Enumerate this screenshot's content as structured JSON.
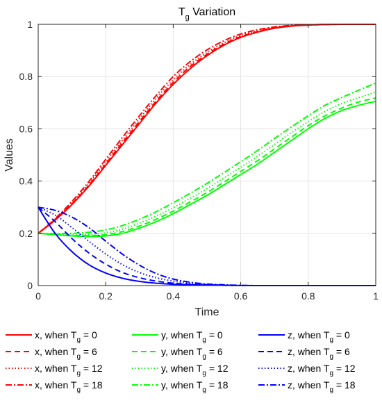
{
  "chart_data": {
    "type": "line",
    "title_main": "T",
    "title_sub": "g",
    "title_rest": " Variation",
    "xlabel": "Time",
    "ylabel": "Values",
    "xlim": [
      0,
      1
    ],
    "ylim": [
      0,
      1
    ],
    "xticks": [
      0,
      0.2,
      0.4,
      0.6,
      0.8,
      1
    ],
    "yticks": [
      0,
      0.2,
      0.4,
      0.6,
      0.8,
      1
    ],
    "xtick_labels": [
      "0",
      "0.2",
      "0.4",
      "0.6",
      "0.8",
      "1"
    ],
    "ytick_labels": [
      "0",
      "0.2",
      "0.4",
      "0.6",
      "0.8",
      "1"
    ],
    "grid": true,
    "legend_position": "bottom",
    "colors": {
      "x": "#ff0000",
      "y": "#00ff00",
      "z": "#0000ff"
    },
    "x": [
      0,
      0.05,
      0.1,
      0.15,
      0.2,
      0.25,
      0.3,
      0.35,
      0.4,
      0.45,
      0.5,
      0.55,
      0.6,
      0.65,
      0.7,
      0.75,
      0.8,
      0.85,
      0.9,
      0.95,
      1
    ],
    "series": [
      {
        "name": "x, when T_g = 0",
        "var": "x",
        "tg": "0",
        "dash": "solid",
        "values": [
          0.2,
          0.25,
          0.31,
          0.38,
          0.46,
          0.54,
          0.62,
          0.7,
          0.77,
          0.83,
          0.88,
          0.92,
          0.95,
          0.97,
          0.985,
          0.993,
          0.997,
          0.999,
          1.0,
          1.0,
          1.0
        ]
      },
      {
        "name": "x, when T_g = 6",
        "var": "x",
        "tg": "6",
        "dash": "dashed",
        "values": [
          0.2,
          0.252,
          0.313,
          0.384,
          0.465,
          0.548,
          0.628,
          0.707,
          0.778,
          0.838,
          0.885,
          0.924,
          0.953,
          0.972,
          0.986,
          0.994,
          0.997,
          0.999,
          1.0,
          1.0,
          1.0
        ]
      },
      {
        "name": "x, when T_g = 12",
        "var": "x",
        "tg": "12",
        "dash": "dotted",
        "values": [
          0.2,
          0.254,
          0.317,
          0.39,
          0.473,
          0.557,
          0.638,
          0.717,
          0.788,
          0.846,
          0.892,
          0.929,
          0.957,
          0.975,
          0.988,
          0.995,
          0.998,
          1.0,
          1.0,
          1.0,
          1.0
        ]
      },
      {
        "name": "x, when T_g = 18",
        "var": "x",
        "tg": "18",
        "dash": "dashdot",
        "values": [
          0.2,
          0.256,
          0.322,
          0.398,
          0.483,
          0.568,
          0.65,
          0.728,
          0.8,
          0.857,
          0.902,
          0.937,
          0.963,
          0.979,
          0.99,
          0.996,
          0.998,
          1.0,
          1.0,
          1.0,
          1.0
        ]
      },
      {
        "name": "y, when T_g = 0",
        "var": "y",
        "tg": "0",
        "dash": "solid",
        "values": [
          0.2,
          0.195,
          0.19,
          0.188,
          0.19,
          0.2,
          0.22,
          0.245,
          0.275,
          0.31,
          0.345,
          0.385,
          0.425,
          0.465,
          0.51,
          0.555,
          0.6,
          0.64,
          0.67,
          0.69,
          0.705
        ]
      },
      {
        "name": "y, when T_g = 6",
        "var": "y",
        "tg": "6",
        "dash": "dashed",
        "values": [
          0.2,
          0.196,
          0.192,
          0.191,
          0.195,
          0.207,
          0.228,
          0.254,
          0.285,
          0.32,
          0.356,
          0.396,
          0.437,
          0.478,
          0.523,
          0.568,
          0.612,
          0.65,
          0.68,
          0.703,
          0.718
        ]
      },
      {
        "name": "y, when T_g = 12",
        "var": "y",
        "tg": "12",
        "dash": "dotted",
        "values": [
          0.2,
          0.197,
          0.195,
          0.196,
          0.202,
          0.216,
          0.239,
          0.266,
          0.298,
          0.334,
          0.371,
          0.412,
          0.453,
          0.495,
          0.54,
          0.585,
          0.628,
          0.667,
          0.697,
          0.72,
          0.74
        ]
      },
      {
        "name": "y, when T_g = 18",
        "var": "y",
        "tg": "18",
        "dash": "dashdot",
        "values": [
          0.2,
          0.199,
          0.2,
          0.204,
          0.213,
          0.23,
          0.254,
          0.283,
          0.317,
          0.353,
          0.391,
          0.432,
          0.474,
          0.517,
          0.563,
          0.607,
          0.65,
          0.69,
          0.72,
          0.748,
          0.775
        ]
      },
      {
        "name": "z, when T_g = 0",
        "var": "z",
        "tg": "0",
        "dash": "solid",
        "values": [
          0.3,
          0.2,
          0.13,
          0.08,
          0.048,
          0.028,
          0.016,
          0.009,
          0.005,
          0.003,
          0.002,
          0.001,
          0.0,
          0.0,
          0.0,
          0.0,
          0.0,
          0.0,
          0.0,
          0.0,
          0.0
        ]
      },
      {
        "name": "z, when T_g = 6",
        "var": "z",
        "tg": "6",
        "dash": "dashed",
        "values": [
          0.3,
          0.245,
          0.18,
          0.125,
          0.082,
          0.05,
          0.03,
          0.017,
          0.009,
          0.005,
          0.003,
          0.001,
          0.0,
          0.0,
          0.0,
          0.0,
          0.0,
          0.0,
          0.0,
          0.0,
          0.0
        ]
      },
      {
        "name": "z, when T_g = 12",
        "var": "z",
        "tg": "12",
        "dash": "dotted",
        "values": [
          0.3,
          0.27,
          0.222,
          0.17,
          0.121,
          0.08,
          0.05,
          0.03,
          0.017,
          0.009,
          0.004,
          0.002,
          0.001,
          0.0,
          0.0,
          0.0,
          0.0,
          0.0,
          0.0,
          0.0,
          0.0
        ]
      },
      {
        "name": "z, when T_g = 18",
        "var": "z",
        "tg": "18",
        "dash": "dashdot",
        "values": [
          0.3,
          0.288,
          0.262,
          0.222,
          0.17,
          0.12,
          0.078,
          0.046,
          0.025,
          0.013,
          0.006,
          0.003,
          0.001,
          0.0,
          0.0,
          0.0,
          0.0,
          0.0,
          0.0,
          0.0,
          0.0
        ]
      }
    ]
  }
}
